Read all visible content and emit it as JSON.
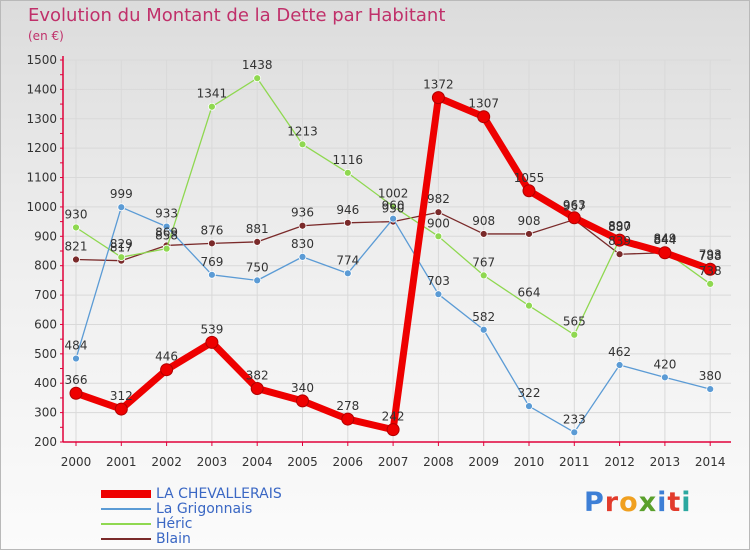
{
  "title": "Evolution du Montant de la Dette par Habitant",
  "unit": "(en €)",
  "brand": "Proxiti",
  "chart_data": {
    "type": "line",
    "title": "Evolution du Montant de la Dette par Habitant",
    "ylabel": "(en €)",
    "xlabel": "",
    "ylim": [
      200,
      1500
    ],
    "yticks": [
      200,
      300,
      400,
      500,
      600,
      700,
      800,
      900,
      1000,
      1100,
      1200,
      1300,
      1400,
      1500
    ],
    "x": [
      "2000",
      "2001",
      "2002",
      "2003",
      "2004",
      "2005",
      "2006",
      "2007",
      "2008",
      "2009",
      "2010",
      "2011",
      "2012",
      "2013",
      "2014"
    ],
    "grid": true,
    "legend_position": "bottom-left",
    "series": [
      {
        "name": "LA CHEVALLERAIS",
        "color": "#ee0000",
        "values": [
          366,
          312,
          446,
          539,
          382,
          340,
          278,
          242,
          1372,
          1307,
          1055,
          963,
          887,
          844,
          788
        ]
      },
      {
        "name": "La Grigonnais",
        "color": "#5b9bd5",
        "values": [
          484,
          999,
          933,
          769,
          750,
          830,
          774,
          960,
          703,
          582,
          322,
          233,
          462,
          420,
          380
        ]
      },
      {
        "name": "Héric",
        "color": "#8fd850",
        "values": [
          930,
          829,
          858,
          1341,
          1438,
          1213,
          1116,
          1002,
          900,
          767,
          664,
          565,
          890,
          849,
          738
        ]
      },
      {
        "name": "Blain",
        "color": "#7a2a2a",
        "values": [
          821,
          817,
          869,
          876,
          881,
          936,
          946,
          950,
          982,
          908,
          908,
          957,
          839,
          844,
          793
        ]
      }
    ]
  }
}
